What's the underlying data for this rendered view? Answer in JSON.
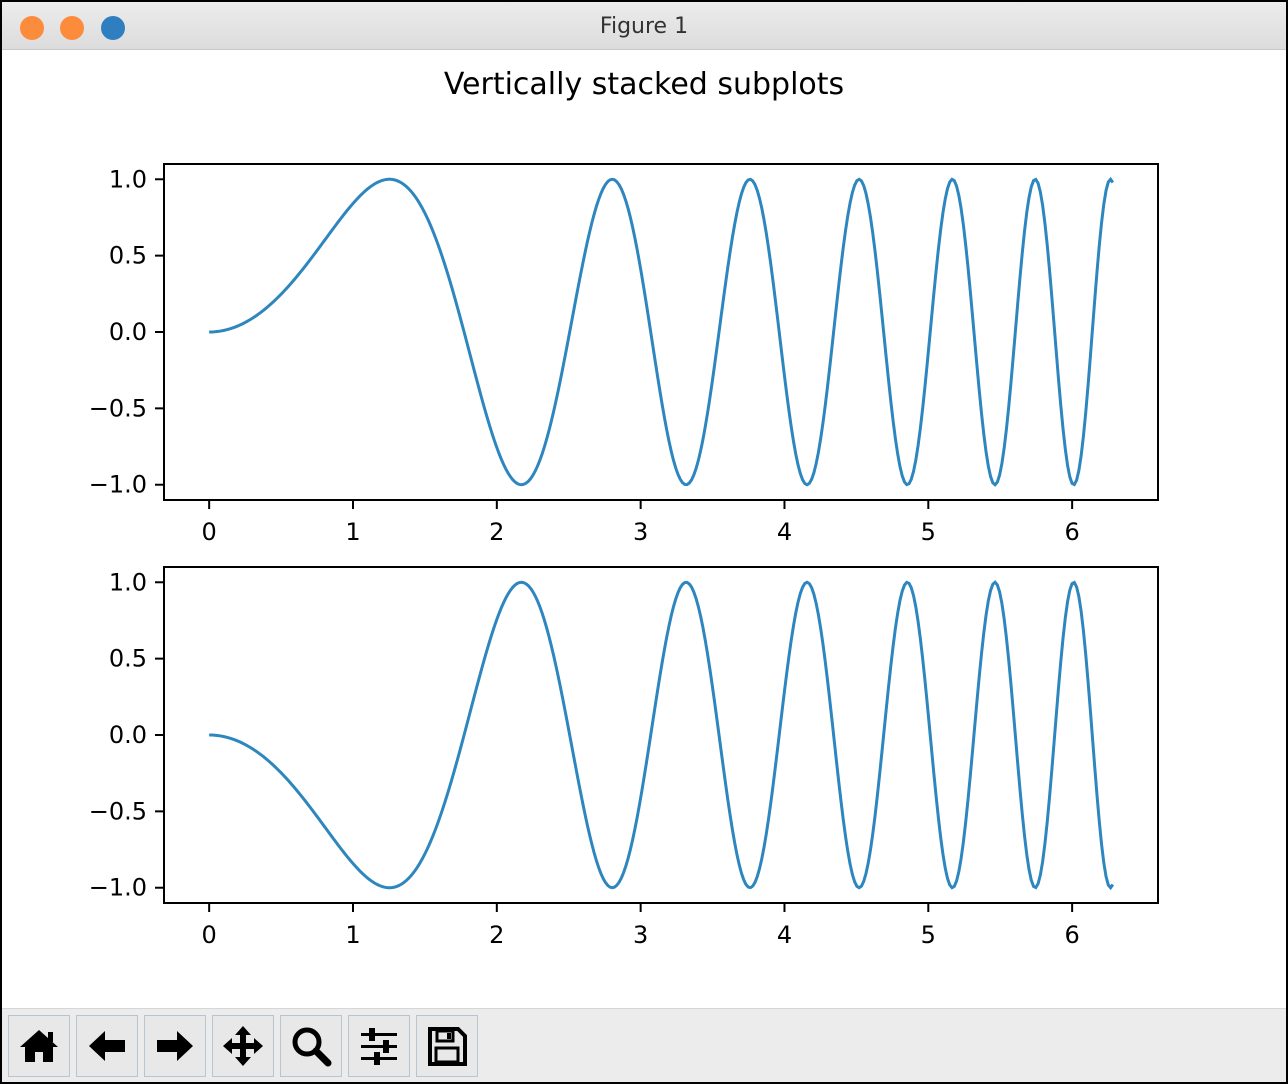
{
  "window": {
    "title": "Figure 1"
  },
  "figure": {
    "suptitle": "Vertically stacked subplots"
  },
  "toolbar": {
    "buttons": [
      {
        "icon": "home-icon",
        "action": "home"
      },
      {
        "icon": "arrow-left-icon",
        "action": "back"
      },
      {
        "icon": "arrow-right-icon",
        "action": "forward"
      },
      {
        "icon": "move-icon",
        "action": "pan"
      },
      {
        "icon": "magnifier-icon",
        "action": "zoom"
      },
      {
        "icon": "sliders-icon",
        "action": "configure-subplots"
      },
      {
        "icon": "save-icon",
        "action": "save"
      }
    ]
  },
  "chart_data": [
    {
      "type": "line",
      "function": "sin(x^2)",
      "x_range": [
        0,
        6.283
      ],
      "samples": 400,
      "xlim": [
        -0.314,
        6.597
      ],
      "ylim": [
        -1.1,
        1.1
      ],
      "x_ticks": [
        0,
        1,
        2,
        3,
        4,
        5,
        6
      ],
      "x_tick_labels": [
        "0",
        "1",
        "2",
        "3",
        "4",
        "5",
        "6"
      ],
      "y_ticks": [
        1.0,
        0.5,
        0.0,
        -0.5,
        -1.0
      ],
      "y_tick_labels": [
        "1.0",
        "0.5",
        "0.0",
        "−0.5",
        "−1.0"
      ],
      "line_color": "#2e86bf",
      "grid": false
    },
    {
      "type": "line",
      "function": "-sin(x^2)",
      "x_range": [
        0,
        6.283
      ],
      "samples": 400,
      "xlim": [
        -0.314,
        6.597
      ],
      "ylim": [
        -1.1,
        1.1
      ],
      "x_ticks": [
        0,
        1,
        2,
        3,
        4,
        5,
        6
      ],
      "x_tick_labels": [
        "0",
        "1",
        "2",
        "3",
        "4",
        "5",
        "6"
      ],
      "y_ticks": [
        1.0,
        0.5,
        0.0,
        -0.5,
        -1.0
      ],
      "y_tick_labels": [
        "1.0",
        "0.5",
        "0.0",
        "−0.5",
        "−1.0"
      ],
      "line_color": "#2e86bf",
      "grid": false
    }
  ]
}
